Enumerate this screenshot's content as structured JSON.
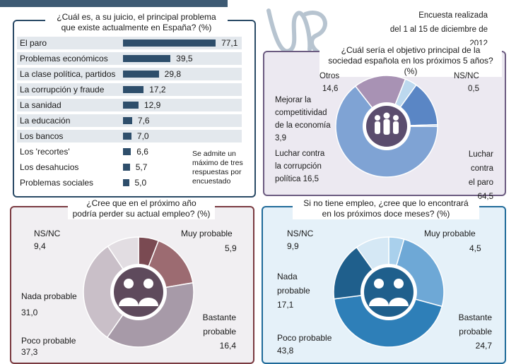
{
  "survey_note": {
    "line1": "Encuesta realizada",
    "line2": "del 1 al 15 de diciembre de 2012"
  },
  "chart_data": [
    {
      "type": "bar",
      "title": "¿Cuál es, a su juicio, el principal problema que existe actualmente en España? (%)",
      "title_line1": "¿Cuál es, a su juicio, el principal problema",
      "title_line2": "que existe actualmente en España? (%)",
      "xlim": [
        0,
        80
      ],
      "categories": [
        "El paro",
        "Problemas económicos",
        "La clase política, partidos",
        "La corrupción y fraude",
        "La sanidad",
        "La educación",
        "Los bancos",
        "Los 'recortes'",
        "Los desahucios",
        "Problemas sociales"
      ],
      "values": [
        77.1,
        39.5,
        29.8,
        17.2,
        12.9,
        7.6,
        7.0,
        6.6,
        5.7,
        5.0
      ],
      "value_labels": [
        "77,1",
        "39,5",
        "29,8",
        "17,2",
        "12,9",
        "7,6",
        "7,0",
        "6,6",
        "5,7",
        "5,0"
      ],
      "note": "Se admite un máximo de tres respuestas por encuestado"
    },
    {
      "type": "pie",
      "title": "¿Cuál sería el objetivo principal de la sociedad española en los próximos 5 años? (%)",
      "title_line1": "¿Cuál sería el objetivo principal de la",
      "title_line2": "sociedad española en los próximos 5 años? (%)",
      "slices": [
        {
          "label": "Luchar contra el paro",
          "value": 64.5,
          "text": "64,5",
          "color": "#7fa3d4"
        },
        {
          "label": "Luchar contra la corrupción política",
          "value": 16.5,
          "text": "16,5",
          "color": "#a892b4"
        },
        {
          "label": "Mejorar la competitividad de la economía",
          "value": 3.9,
          "text": "3,9",
          "color": "#bcd8ee"
        },
        {
          "label": "Otros",
          "value": 14.6,
          "text": "14,6",
          "color": "#5a86c5"
        },
        {
          "label": "NS/NC",
          "value": 0.5,
          "text": "0,5",
          "color": "#8fb4dc"
        }
      ],
      "label_text": {
        "paro_1": "Luchar contra",
        "paro_2": "el paro",
        "corr_1": "Luchar contra",
        "corr_2": "la corrupción",
        "corr_3": "política 16,5",
        "comp_1": "Mejorar la",
        "comp_2": "competitividad",
        "comp_3": "de la economía",
        "otros": "Otros",
        "nsnc": "NS/NC"
      }
    },
    {
      "type": "pie",
      "title": "¿Cree que en el próximo año podría perder su actual empleo? (%)",
      "title_line1": "¿Cree que en el próximo año",
      "title_line2": "podría perder su actual empleo? (%)",
      "slices": [
        {
          "label": "Muy probable",
          "value": 5.9,
          "text": "5,9",
          "color": "#7a4a52"
        },
        {
          "label": "Bastante probable",
          "value": 16.4,
          "text": "16,4",
          "color": "#9c6b71"
        },
        {
          "label": "Poco probable",
          "value": 37.3,
          "text": "37,3",
          "color": "#a79aa8"
        },
        {
          "label": "Nada probable",
          "value": 31.0,
          "text": "31,0",
          "color": "#c9bfc8"
        },
        {
          "label": "NS/NC",
          "value": 9.4,
          "text": "9,4",
          "color": "#e2dde2"
        }
      ],
      "label_text": {
        "bast_1": "Bastante",
        "bast_2": "probable",
        "nada_1": "Nada probable"
      }
    },
    {
      "type": "pie",
      "title": "Si no tiene empleo, ¿cree que lo encontrará en los próximos doce meses? (%)",
      "title_line1": "Si no tiene empleo, ¿cree que lo encontrará",
      "title_line2": "en los próximos doce meses? (%)",
      "slices": [
        {
          "label": "Muy probable",
          "value": 4.5,
          "text": "4,5",
          "color": "#a9d0ec"
        },
        {
          "label": "Bastante probable",
          "value": 24.7,
          "text": "24,7",
          "color": "#6ea8d6"
        },
        {
          "label": "Poco probable",
          "value": 43.8,
          "text": "43,8",
          "color": "#2e7fb8"
        },
        {
          "label": "Nada probable",
          "value": 17.1,
          "text": "17,1",
          "color": "#1f5f8c"
        },
        {
          "label": "NS/NC",
          "value": 9.9,
          "text": "9,9",
          "color": "#d5e8f5"
        }
      ],
      "label_text": {
        "bast_1": "Bastante",
        "bast_2": "probable",
        "nada_1": "Nada",
        "nada_2": "probable"
      }
    }
  ]
}
